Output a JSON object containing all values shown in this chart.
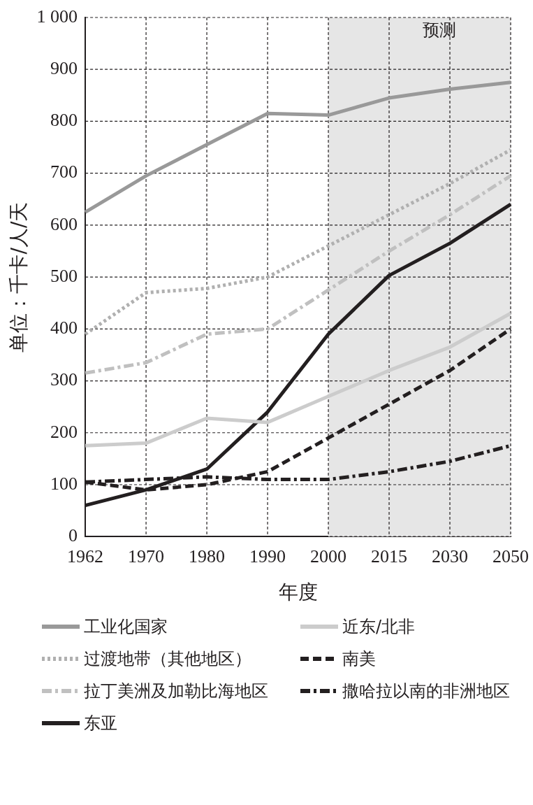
{
  "chart_data": {
    "type": "line",
    "xlabel": "年度",
    "ylabel": "单位：千卡/人/天",
    "categories": [
      "1962",
      "1970",
      "1980",
      "1990",
      "2000",
      "2015",
      "2030",
      "2050"
    ],
    "series": [
      {
        "name": "工业化国家",
        "color": "#999999",
        "line_style": "solid",
        "values": [
          625,
          695,
          755,
          815,
          812,
          845,
          862,
          875
        ]
      },
      {
        "name": "近东/北非",
        "color": "#cccccc",
        "line_style": "solid",
        "values": [
          175,
          180,
          228,
          220,
          270,
          320,
          365,
          430
        ]
      },
      {
        "name": "过渡地带（其他地区）",
        "color": "#b0b0b0",
        "line_style": "dotted",
        "values": [
          390,
          470,
          478,
          500,
          560,
          620,
          680,
          745
        ]
      },
      {
        "name": "南美",
        "color": "#231f20",
        "line_style": "dashed",
        "values": [
          105,
          90,
          100,
          125,
          190,
          255,
          320,
          400
        ]
      },
      {
        "name": "拉丁美洲及加勒比海地区",
        "color": "#c0c0c0",
        "line_style": "dashdot",
        "values": [
          315,
          335,
          390,
          400,
          475,
          550,
          620,
          695
        ]
      },
      {
        "name": "撒哈拉以南的非洲地区",
        "color": "#231f20",
        "line_style": "dashdot",
        "values": [
          105,
          110,
          115,
          110,
          110,
          125,
          145,
          175
        ]
      },
      {
        "name": "东亚",
        "color": "#231f20",
        "line_style": "solid",
        "values": [
          60,
          90,
          130,
          240,
          390,
          503,
          565,
          640
        ]
      }
    ],
    "ylim": [
      0,
      1000
    ],
    "yticks": [
      0,
      100,
      200,
      300,
      400,
      500,
      600,
      700,
      800,
      900,
      {
        "value": 1000,
        "label": "1 000"
      }
    ],
    "bands": [
      {
        "axis": "x",
        "from": "2000",
        "to": "2050",
        "label": "预测",
        "color": "#e6e6e6"
      }
    ],
    "grid": true,
    "legend": "bottom",
    "marker": "none"
  }
}
